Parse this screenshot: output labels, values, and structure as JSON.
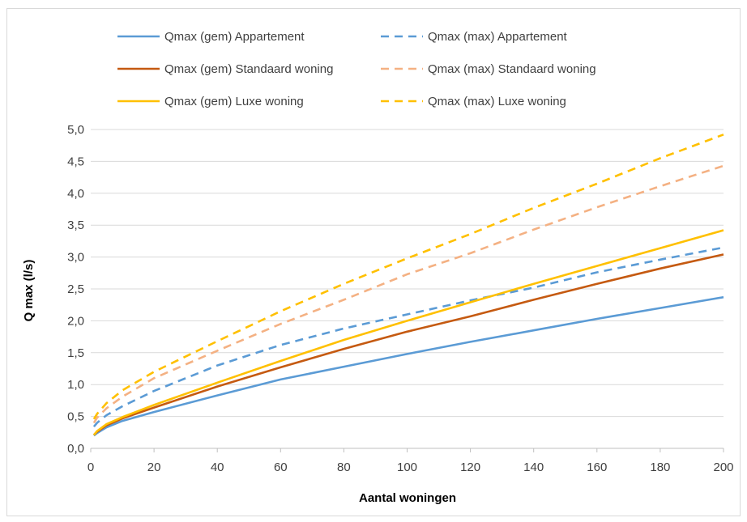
{
  "chart_data": {
    "type": "line",
    "title": "",
    "xlabel": "Aantal woningen",
    "ylabel": "Q max (l/s)",
    "xlim": [
      0,
      200
    ],
    "ylim": [
      0,
      5
    ],
    "x_ticks": [
      0,
      20,
      40,
      60,
      80,
      100,
      120,
      140,
      160,
      180,
      200
    ],
    "x_tick_labels": [
      "0",
      "20",
      "40",
      "60",
      "80",
      "100",
      "120",
      "140",
      "160",
      "180",
      "200"
    ],
    "y_ticks": [
      0,
      0.5,
      1,
      1.5,
      2,
      2.5,
      3,
      3.5,
      4,
      4.5,
      5
    ],
    "y_tick_labels": [
      "0,0",
      "0,5",
      "1,0",
      "1,5",
      "2,0",
      "2,5",
      "3,0",
      "3,5",
      "4,0",
      "4,5",
      "5,0"
    ],
    "grid": "horizontal",
    "legend_position": "top",
    "x": [
      1,
      2,
      5,
      10,
      20,
      40,
      60,
      80,
      100,
      120,
      140,
      160,
      180,
      200
    ],
    "series": [
      {
        "name": "Qmax (gem) Appartement",
        "color": "#5b9bd5",
        "dash": false,
        "values": [
          0.2,
          0.24,
          0.33,
          0.43,
          0.57,
          0.83,
          1.08,
          1.28,
          1.48,
          1.67,
          1.85,
          2.03,
          2.2,
          2.37
        ]
      },
      {
        "name": "Qmax (max) Appartement",
        "color": "#5b9bd5",
        "dash": true,
        "values": [
          0.34,
          0.4,
          0.52,
          0.66,
          0.9,
          1.3,
          1.62,
          1.88,
          2.1,
          2.32,
          2.52,
          2.76,
          2.96,
          3.15
        ]
      },
      {
        "name": "Qmax (gem) Standaard woning",
        "color": "#c55a11",
        "dash": false,
        "values": [
          0.21,
          0.26,
          0.36,
          0.47,
          0.64,
          0.97,
          1.27,
          1.56,
          1.83,
          2.07,
          2.33,
          2.58,
          2.82,
          3.04
        ]
      },
      {
        "name": "Qmax (max) Standaard woning",
        "color": "#f4b183",
        "dash": true,
        "values": [
          0.4,
          0.48,
          0.63,
          0.81,
          1.1,
          1.53,
          1.95,
          2.33,
          2.73,
          3.06,
          3.43,
          3.78,
          4.11,
          4.43
        ]
      },
      {
        "name": "Qmax (gem) Luxe woning",
        "color": "#ffc000",
        "dash": false,
        "values": [
          0.21,
          0.27,
          0.38,
          0.49,
          0.68,
          1.03,
          1.37,
          1.7,
          2.0,
          2.29,
          2.58,
          2.86,
          3.14,
          3.42
        ]
      },
      {
        "name": "Qmax (max) Luxe woning",
        "color": "#ffc000",
        "dash": true,
        "values": [
          0.46,
          0.54,
          0.71,
          0.91,
          1.2,
          1.68,
          2.15,
          2.58,
          2.98,
          3.36,
          3.77,
          4.15,
          4.55,
          4.92
        ]
      }
    ]
  }
}
